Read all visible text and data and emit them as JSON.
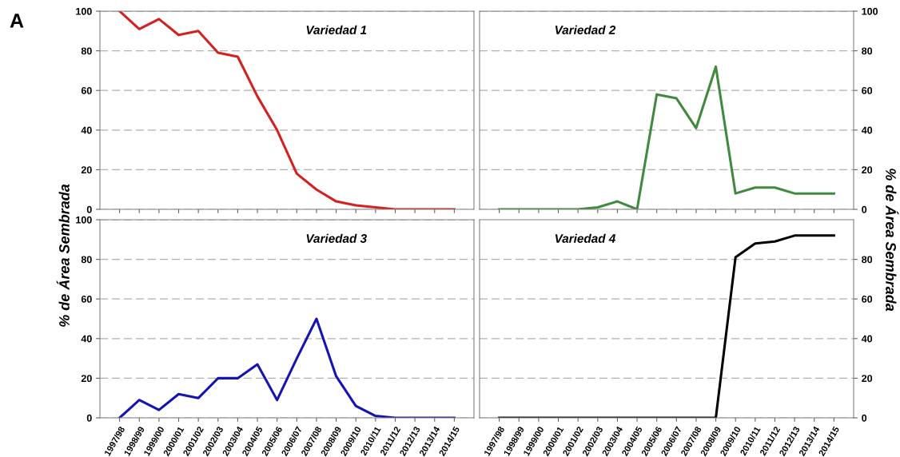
{
  "chart_data": [
    {
      "type": "line",
      "title": "Variedad 1",
      "annotations": [
        "A"
      ],
      "categories": [
        "1997/98",
        "1998/99",
        "1999/00",
        "2000/01",
        "2001/02",
        "2002/03",
        "2003/04",
        "2004/05",
        "2005/06",
        "2006/07",
        "2007/08",
        "2008/09",
        "2009/10",
        "2010/11",
        "2011/12",
        "2012/13",
        "2013/14",
        "2014/15"
      ],
      "series": [
        {
          "color": "#d42020",
          "values": [
            100,
            91,
            96,
            88,
            90,
            79,
            77,
            57,
            40,
            18,
            10,
            4,
            2,
            1,
            0,
            0,
            0,
            0
          ]
        }
      ],
      "ylim": [
        0,
        100
      ],
      "yticks": [
        0,
        20,
        40,
        60,
        80,
        100
      ],
      "grid": "y",
      "tick_labels": "y"
    },
    {
      "type": "line",
      "title": "Variedad 2",
      "categories": [
        "1997/98",
        "1998/99",
        "1999/00",
        "2000/01",
        "2001/02",
        "2002/03",
        "2003/04",
        "2004/05",
        "2005/06",
        "2006/07",
        "2007/08",
        "2008/09",
        "2009/10",
        "2010/11",
        "2011/12",
        "2012/13",
        "2013/14",
        "2014/15"
      ],
      "series": [
        {
          "color": "#3f8a3f",
          "axis": "y2",
          "values": [
            0,
            0,
            0,
            0,
            0,
            1,
            4,
            0,
            58,
            56,
            41,
            72,
            8,
            11,
            11,
            8,
            8,
            8
          ]
        }
      ],
      "y2lim": [
        0,
        100
      ],
      "y2ticks": [
        0,
        20,
        40,
        60,
        80,
        100
      ],
      "grid": "y",
      "tick_labels": "y"
    },
    {
      "type": "line",
      "title": "Variedad 3",
      "ylabel": "% de Área Sembrada",
      "categories": [
        "1997/98",
        "1998/99",
        "1999/00",
        "2000/01",
        "2001/02",
        "2002/03",
        "2003/04",
        "2004/05",
        "2005/06",
        "2006/07",
        "2007/08",
        "2008/09",
        "2009/10",
        "2010/11",
        "2011/12",
        "2012/13",
        "2013/14",
        "2014/15"
      ],
      "series": [
        {
          "color": "#1414b4",
          "values": [
            0,
            9,
            4,
            12,
            10,
            20,
            20,
            27,
            9,
            30,
            50,
            21,
            6,
            1,
            0,
            0,
            0,
            0
          ]
        }
      ],
      "ylim": [
        0,
        100
      ],
      "yticks": [
        0,
        20,
        40,
        60,
        80,
        100
      ],
      "grid": "y"
    },
    {
      "type": "line",
      "title": "Variedad 4",
      "y2label": "% de Área Sembrada",
      "categories": [
        "1997/98",
        "1998/99",
        "1999/00",
        "2000/01",
        "2001/02",
        "2002/03",
        "2003/04",
        "2004/05",
        "2005/06",
        "2006/07",
        "2007/08",
        "2008/09",
        "2009/10",
        "2010/11",
        "2011/12",
        "2012/13",
        "2013/14",
        "2014/15"
      ],
      "series": [
        {
          "color": "#000000",
          "axis": "y2",
          "values": [
            0,
            0,
            0,
            0,
            0,
            0,
            0,
            0,
            0,
            0,
            0,
            0,
            81,
            88,
            89,
            92,
            92,
            92
          ]
        }
      ],
      "y2lim": [
        0,
        100
      ],
      "y2ticks": [
        0,
        20,
        40,
        60,
        80
      ],
      "grid": "y"
    }
  ]
}
